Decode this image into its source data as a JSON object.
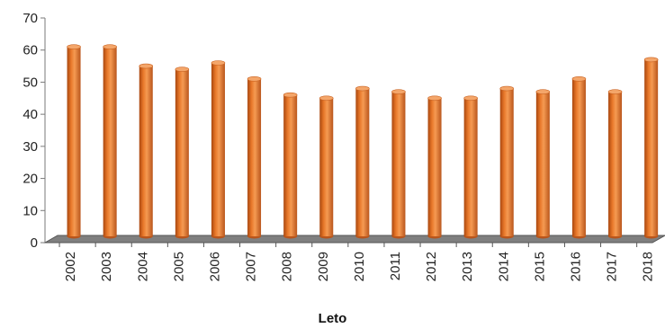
{
  "chart_data": {
    "type": "bar",
    "title": "",
    "xlabel": "Leto",
    "ylabel": "",
    "ylim": [
      0,
      70
    ],
    "yticks": [
      "0",
      "10",
      "20",
      "30",
      "40",
      "50",
      "60",
      "70"
    ],
    "categories": [
      "2002",
      "2003",
      "2004",
      "2005",
      "2006",
      "2007",
      "2008",
      "2009",
      "2010",
      "2011",
      "2012",
      "2013",
      "2014",
      "2015",
      "2016",
      "2017",
      "2018"
    ],
    "values": [
      61,
      61,
      55,
      54,
      56,
      51,
      46,
      45,
      48,
      47,
      45,
      45,
      48,
      47,
      51,
      47,
      57
    ],
    "bar_color": "#e8782a",
    "bar_top_color": "#f4a66a",
    "floor_color": "#7f7f7f",
    "grid": false,
    "legend": "none"
  }
}
